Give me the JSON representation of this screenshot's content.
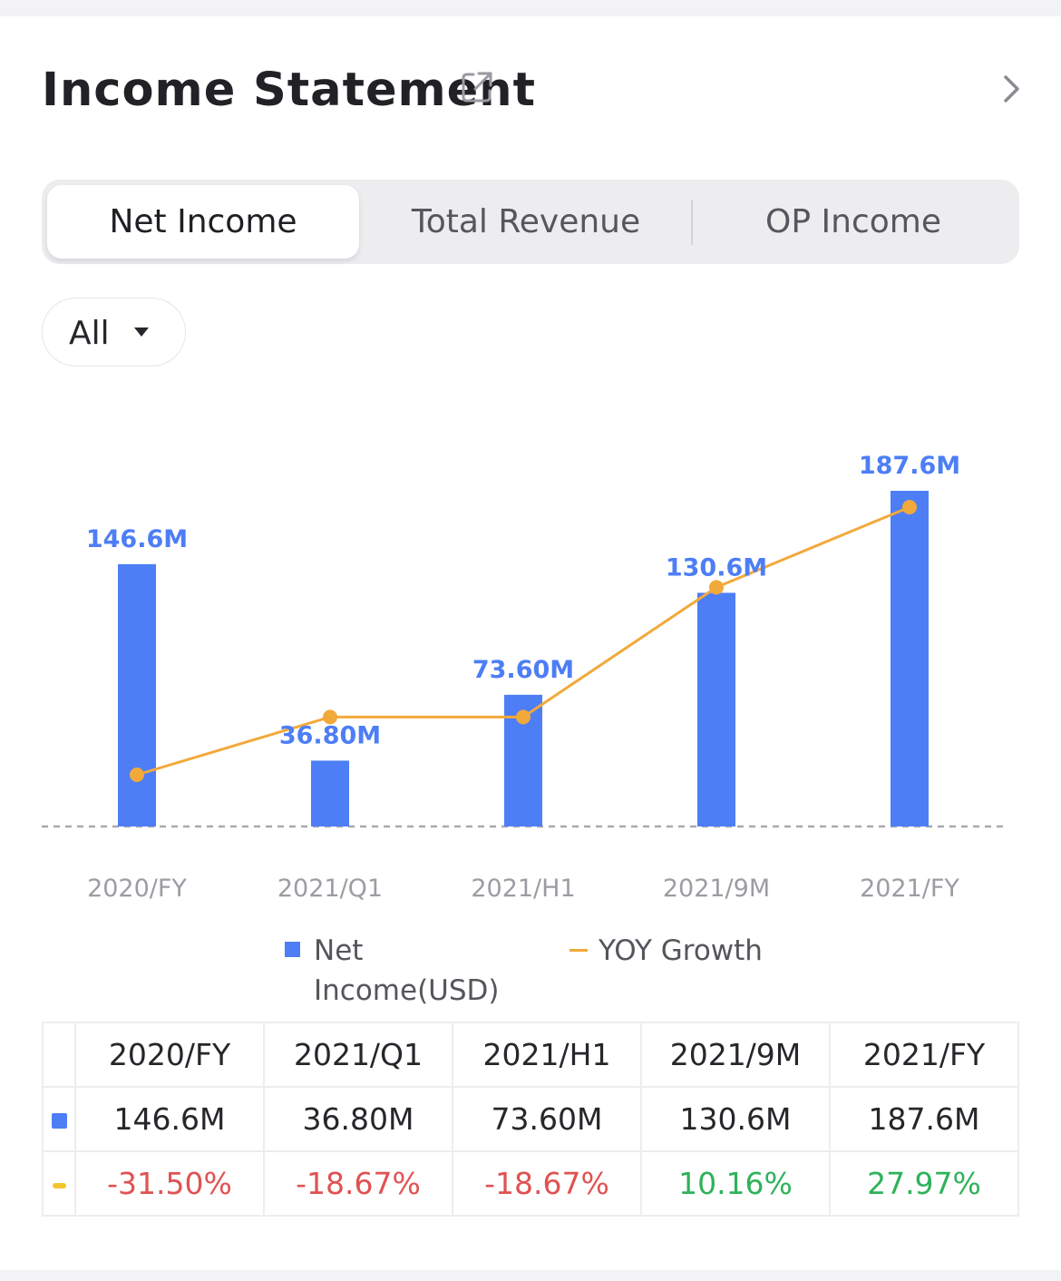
{
  "header": {
    "title": "Income Statement",
    "icons": {
      "external": "external-link-icon",
      "more": "chevron-right-icon"
    }
  },
  "tabs": [
    {
      "label": "Net Income",
      "active": true
    },
    {
      "label": "Total Revenue",
      "active": false
    },
    {
      "label": "OP Income",
      "active": false
    }
  ],
  "filter": {
    "label": "All",
    "icon": "caret-down-icon"
  },
  "colors": {
    "bar": "#4d7ef6",
    "line": "#f2a93b",
    "negative": "#e05252",
    "positive": "#2eb25a"
  },
  "chart_data": {
    "type": "bar",
    "categories": [
      "2020/FY",
      "2021/Q1",
      "2021/H1",
      "2021/9M",
      "2021/FY"
    ],
    "series": [
      {
        "name": "Net Income(USD)",
        "type": "bar",
        "values": [
          146.6,
          36.8,
          73.6,
          130.6,
          187.6
        ],
        "labels": [
          "146.6M",
          "36.80M",
          "73.60M",
          "130.6M",
          "187.6M"
        ]
      },
      {
        "name": "YOY Growth",
        "type": "line",
        "values": [
          -31.5,
          -18.67,
          -18.67,
          10.16,
          27.97
        ]
      }
    ],
    "legend": "bottom-center",
    "grid": false
  },
  "legend": {
    "bar_label": "Net Income(USD)",
    "line_label": "YOY Growth"
  },
  "table": {
    "headers": [
      "2020/FY",
      "2021/Q1",
      "2021/H1",
      "2021/9M",
      "2021/FY"
    ],
    "values": [
      "146.6M",
      "36.80M",
      "73.60M",
      "130.6M",
      "187.6M"
    ],
    "growth": [
      "-31.50%",
      "-18.67%",
      "-18.67%",
      "10.16%",
      "27.97%"
    ]
  }
}
